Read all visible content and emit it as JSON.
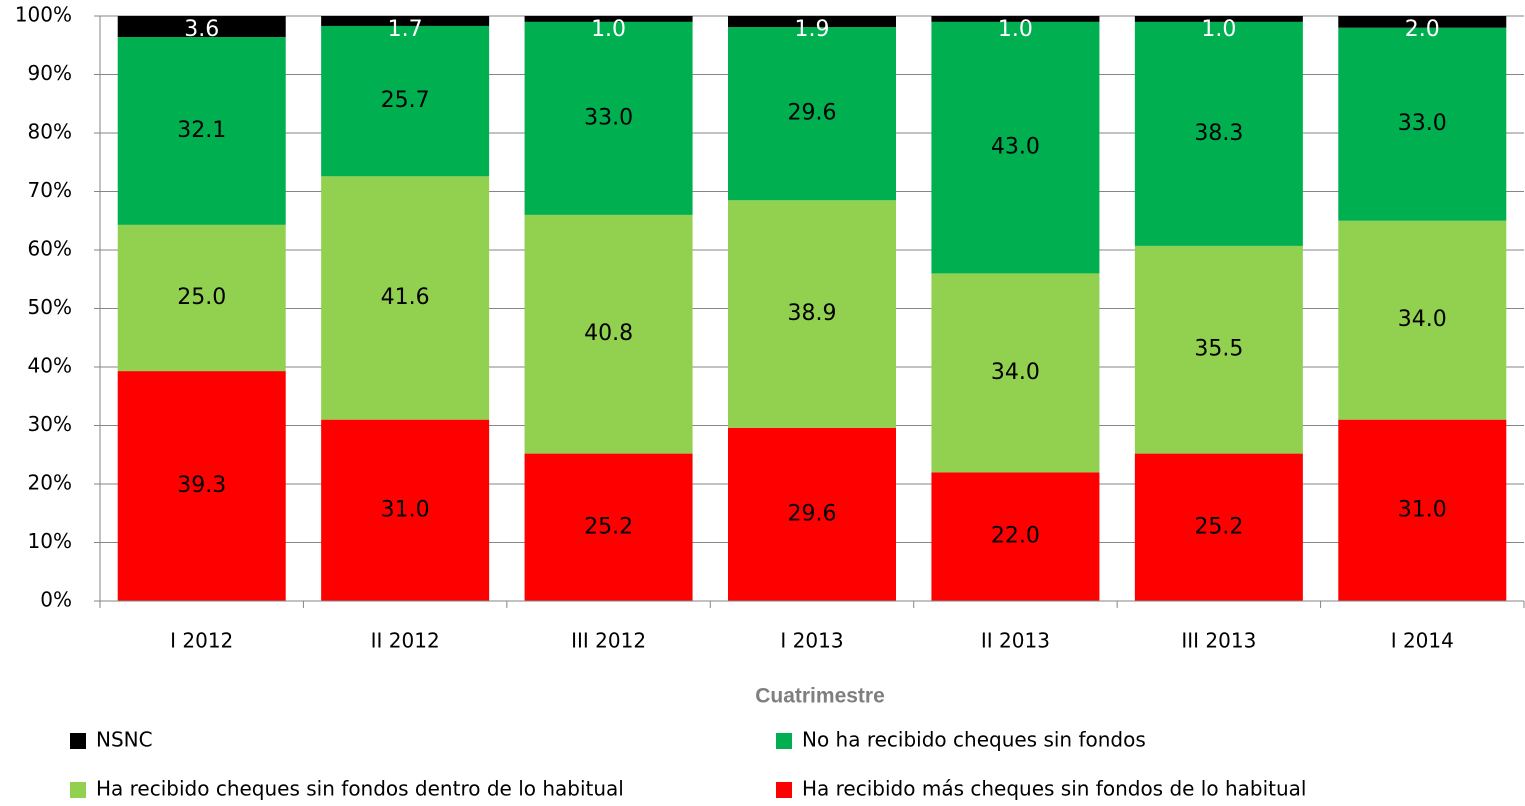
{
  "chart_data": {
    "type": "stacked_bar",
    "x_label": "Cuatrimestre",
    "categories": [
      "I 2012",
      "II 2012",
      "III 2012",
      "I 2013",
      "II 2013",
      "III 2013",
      "I 2014"
    ],
    "series": [
      {
        "name": "NSNC",
        "color": "#000000",
        "values": [
          3.6,
          1.7,
          1.0,
          1.9,
          1.0,
          1.0,
          2.0
        ],
        "value_labels": [
          "3.6",
          "1.7",
          "1.0",
          "1.9",
          "1.0",
          "1.0",
          "2.0"
        ]
      },
      {
        "name": "No ha recibido cheques sin fondos",
        "color": "#00b050",
        "values": [
          32.1,
          25.7,
          33.0,
          29.6,
          43.0,
          38.3,
          33.0
        ],
        "value_labels": [
          "32.1",
          "25.7",
          "33.0",
          "29.6",
          "43.0",
          "38.3",
          "33.0"
        ]
      },
      {
        "name": "Ha recibido cheques sin fondos dentro de lo habitual",
        "color": "#92d050",
        "values": [
          25.0,
          41.6,
          40.8,
          38.9,
          34.0,
          35.5,
          34.0
        ],
        "value_labels": [
          "25.0",
          "41.6",
          "40.8",
          "38.9",
          "34.0",
          "35.5",
          "34.0"
        ]
      },
      {
        "name": "Ha recibido más cheques sin fondos de lo habitual",
        "color": "#ff0000",
        "values": [
          39.3,
          31.0,
          25.2,
          29.6,
          22.0,
          25.2,
          31.0
        ],
        "value_labels": [
          "39.3",
          "31.0",
          "25.2",
          "29.6",
          "22.0",
          "25.2",
          "31.0"
        ]
      }
    ],
    "ylim": [
      0,
      100
    ],
    "yticks": [
      {
        "value": 0,
        "label": "0%"
      },
      {
        "value": 10,
        "label": "10%"
      },
      {
        "value": 20,
        "label": "20%"
      },
      {
        "value": 30,
        "label": "30%"
      },
      {
        "value": 40,
        "label": "40%"
      },
      {
        "value": 50,
        "label": "50%"
      },
      {
        "value": 60,
        "label": "60%"
      },
      {
        "value": 70,
        "label": "70%"
      },
      {
        "value": 80,
        "label": "80%"
      },
      {
        "value": 90,
        "label": "90%"
      },
      {
        "value": 100,
        "label": "100%"
      }
    ],
    "grid": true
  }
}
